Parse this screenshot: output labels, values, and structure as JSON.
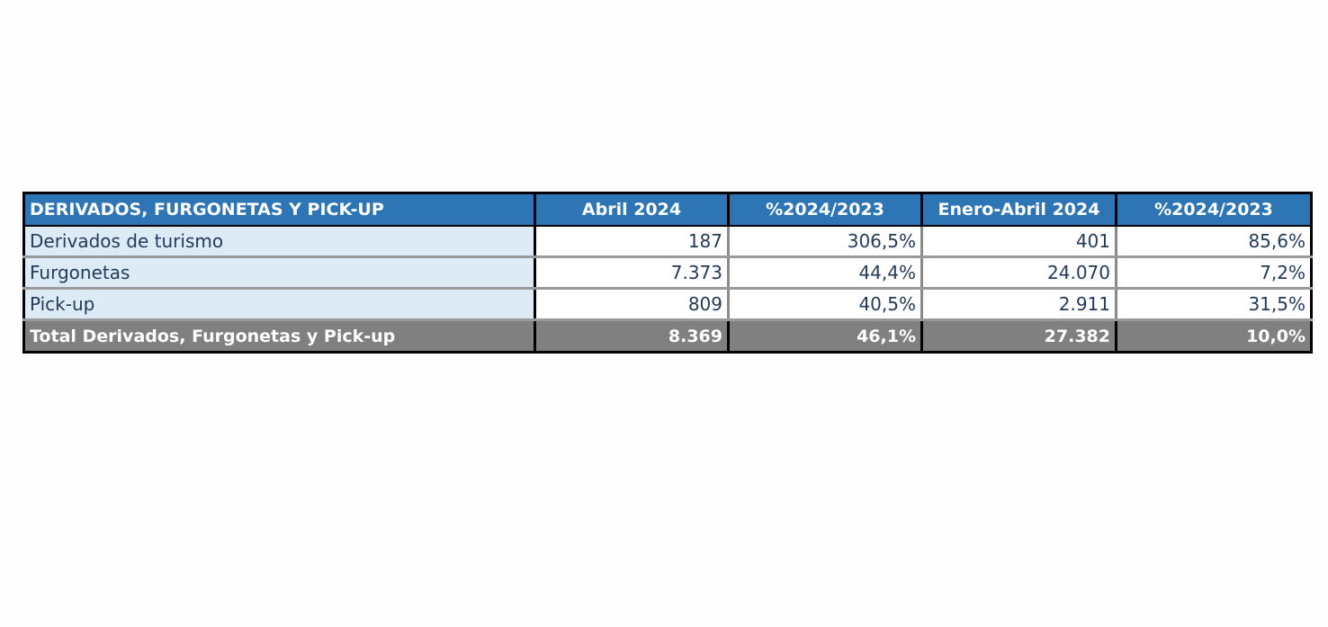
{
  "table": {
    "headers": [
      "DERIVADOS, FURGONETAS Y PICK-UP",
      "Abril 2024",
      "%2024/2023",
      "Enero-Abril 2024",
      "%2024/2023"
    ],
    "rows": [
      [
        "Derivados de turismo",
        "187",
        "306,5%",
        "401",
        "85,6%"
      ],
      [
        "Furgonetas",
        "7.373",
        "44,4%",
        "24.070",
        "7,2%"
      ],
      [
        "Pick-up",
        "809",
        "40,5%",
        "2.911",
        "31,5%"
      ]
    ],
    "total": [
      "Total Derivados, Furgonetas y Pick-up",
      "8.369",
      "46,1%",
      "27.382",
      "10,0%"
    ]
  },
  "colors": {
    "header_bg": "#2e75b6",
    "label_bg": "#ddebf7",
    "total_bg": "#808080"
  }
}
